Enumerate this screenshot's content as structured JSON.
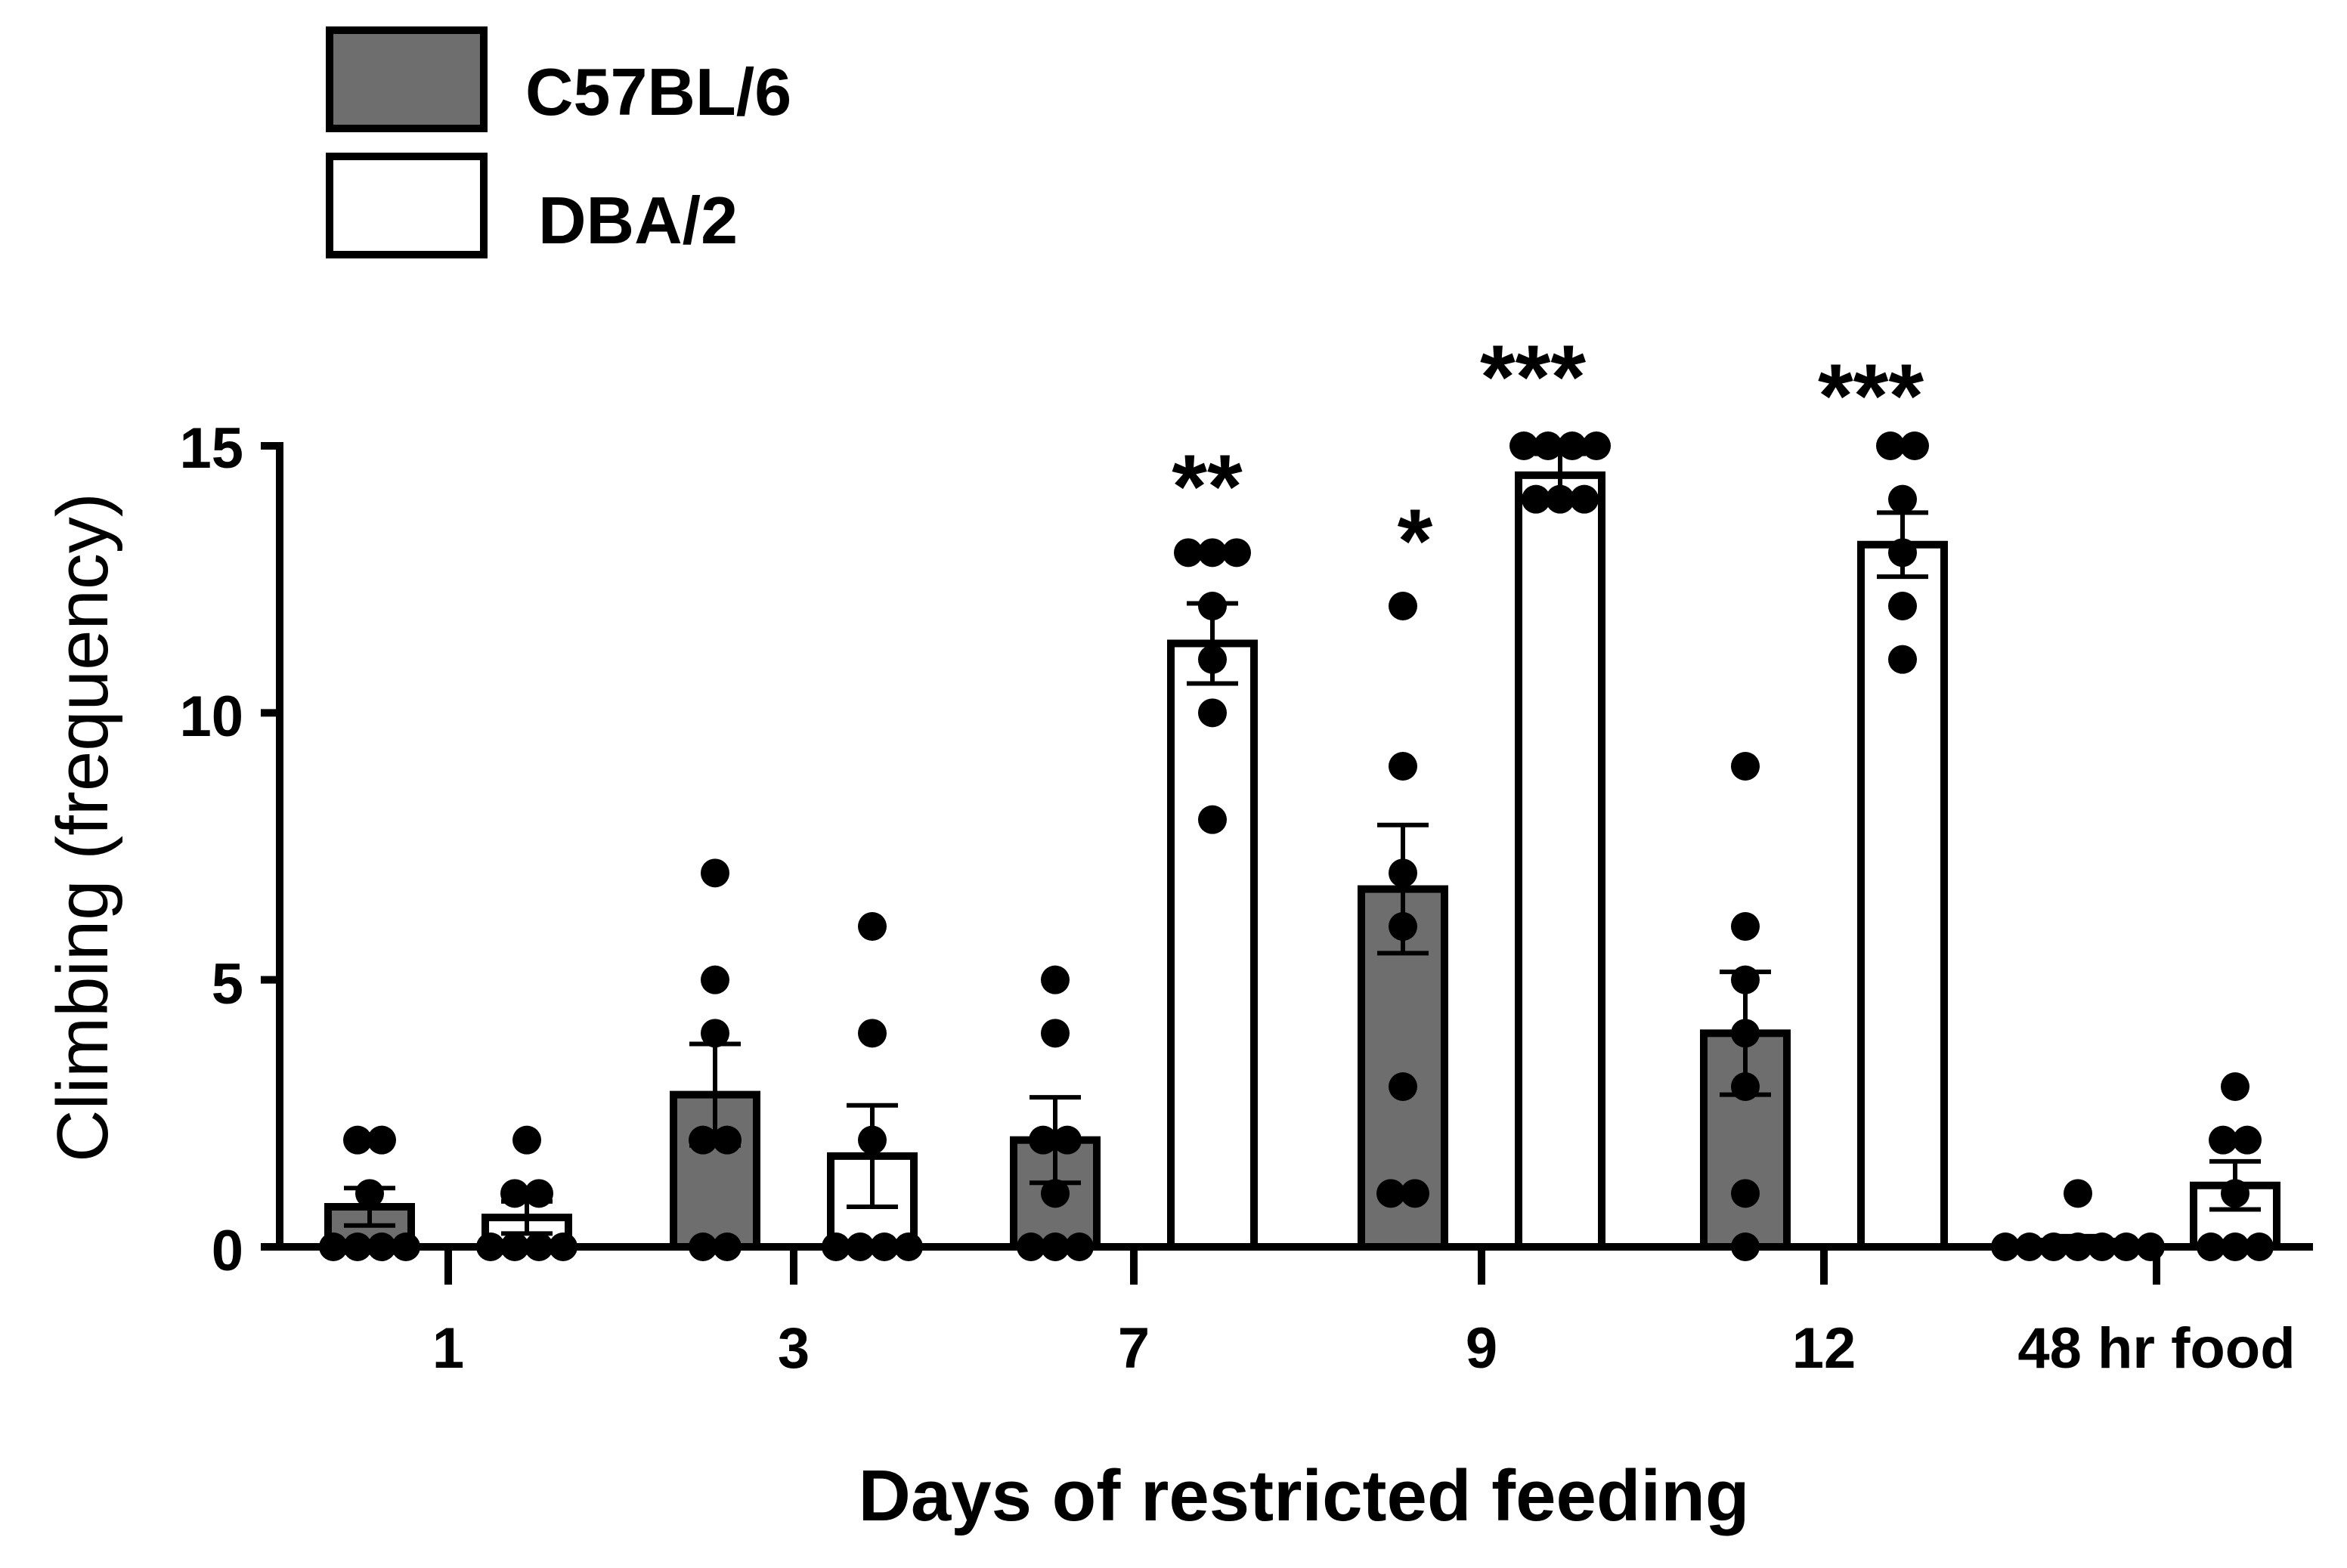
{
  "chart_data": {
    "type": "bar",
    "title": "",
    "xlabel": "Days of restricted feeding",
    "ylabel": "Climbing (frequency)",
    "ylim": [
      0,
      15
    ],
    "yticks": [
      "0",
      "5",
      "10",
      "15"
    ],
    "categories": [
      "1",
      "3",
      "7",
      "9",
      "12",
      "48 hr food"
    ],
    "legend_position": "top-left",
    "series": [
      {
        "name": "C57BL/6",
        "color": "#6e6e6e",
        "values": [
          0.75,
          2.85,
          2.0,
          6.7,
          4.0,
          0.1
        ],
        "sem": [
          0.35,
          0.95,
          0.8,
          1.2,
          1.15,
          0.1
        ],
        "points": [
          [
            2,
            2,
            1,
            0,
            0,
            0,
            0
          ],
          [
            7,
            5,
            4,
            2,
            2,
            0,
            0
          ],
          [
            5,
            4,
            2,
            2,
            1,
            0,
            0,
            0
          ],
          [
            12,
            9,
            7,
            6,
            3,
            1,
            1
          ],
          [
            9,
            6,
            5,
            4,
            3,
            1,
            0
          ],
          [
            1,
            0,
            0,
            0,
            0,
            0,
            0,
            0
          ]
        ],
        "significance": [
          "",
          "",
          "",
          "*",
          "",
          ""
        ]
      },
      {
        "name": "DBA/2",
        "color": "#ffffff",
        "values": [
          0.55,
          1.7,
          11.3,
          14.45,
          13.15,
          1.15
        ],
        "sem": [
          0.3,
          0.95,
          0.75,
          0.4,
          0.6,
          0.45
        ],
        "points": [
          [
            2,
            1,
            1,
            0,
            0,
            0,
            0
          ],
          [
            6,
            4,
            2,
            0,
            0,
            0,
            0
          ],
          [
            13,
            13,
            13,
            12,
            11,
            10,
            8
          ],
          [
            15,
            15,
            15,
            15,
            14,
            14,
            14
          ],
          [
            15,
            15,
            14,
            13,
            12,
            11
          ],
          [
            3,
            2,
            2,
            1,
            0,
            0,
            0
          ]
        ],
        "significance": [
          "",
          "",
          "**",
          "***",
          "***",
          ""
        ]
      }
    ]
  }
}
